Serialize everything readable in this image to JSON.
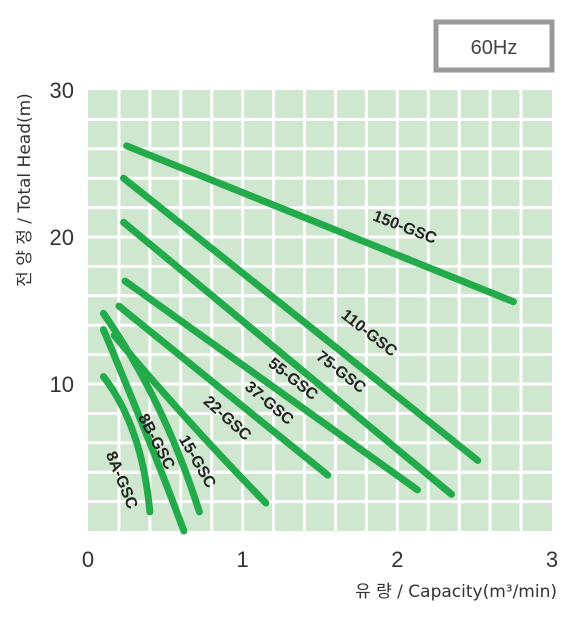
{
  "badge": {
    "text": "60Hz"
  },
  "chart_data": {
    "type": "line",
    "xlabel": "유 량 / Capacity(m³/min)",
    "ylabel": "전 양 정 / Total Head(m)",
    "xlim": [
      0,
      3
    ],
    "ylim": [
      0,
      30
    ],
    "xticks": [
      0,
      1,
      2,
      3
    ],
    "yticks": [
      10,
      20,
      30
    ],
    "x_tick_labels": [
      "0",
      "1",
      "2",
      "3"
    ],
    "y_tick_labels": [
      "10",
      "20",
      "30"
    ],
    "grid": true,
    "colors": {
      "plot_bg": "#cfe6cf",
      "grid": "#ffffff",
      "line": "#22aa4b",
      "badge_border": "#9a9a9a"
    },
    "series": [
      {
        "name": "150-GSC",
        "x": [
          0.25,
          2.75
        ],
        "y": [
          26.2,
          15.6
        ]
      },
      {
        "name": "110-GSC",
        "x": [
          0.23,
          2.52
        ],
        "y": [
          24.0,
          4.8
        ]
      },
      {
        "name": "75-GSC",
        "x": [
          0.23,
          2.35
        ],
        "y": [
          21.0,
          2.5
        ]
      },
      {
        "name": "55-GSC",
        "x": [
          0.24,
          2.13
        ],
        "y": [
          17.0,
          2.8
        ]
      },
      {
        "name": "37-GSC",
        "x": [
          0.2,
          1.55
        ],
        "y": [
          15.3,
          3.8
        ]
      },
      {
        "name": "22-GSC",
        "x": [
          0.17,
          0.65,
          1.15
        ],
        "y": [
          13.3,
          7.5,
          1.9
        ]
      },
      {
        "name": "15-GSC",
        "x": [
          0.1,
          0.45,
          0.72
        ],
        "y": [
          14.8,
          8.5,
          1.3
        ]
      },
      {
        "name": "8B-GSC",
        "x": [
          0.1,
          0.4,
          0.62
        ],
        "y": [
          13.7,
          6.0,
          0.0
        ]
      },
      {
        "name": "8A-GSC",
        "x": [
          0.1,
          0.3,
          0.4
        ],
        "y": [
          10.5,
          6.5,
          1.3
        ]
      }
    ]
  }
}
